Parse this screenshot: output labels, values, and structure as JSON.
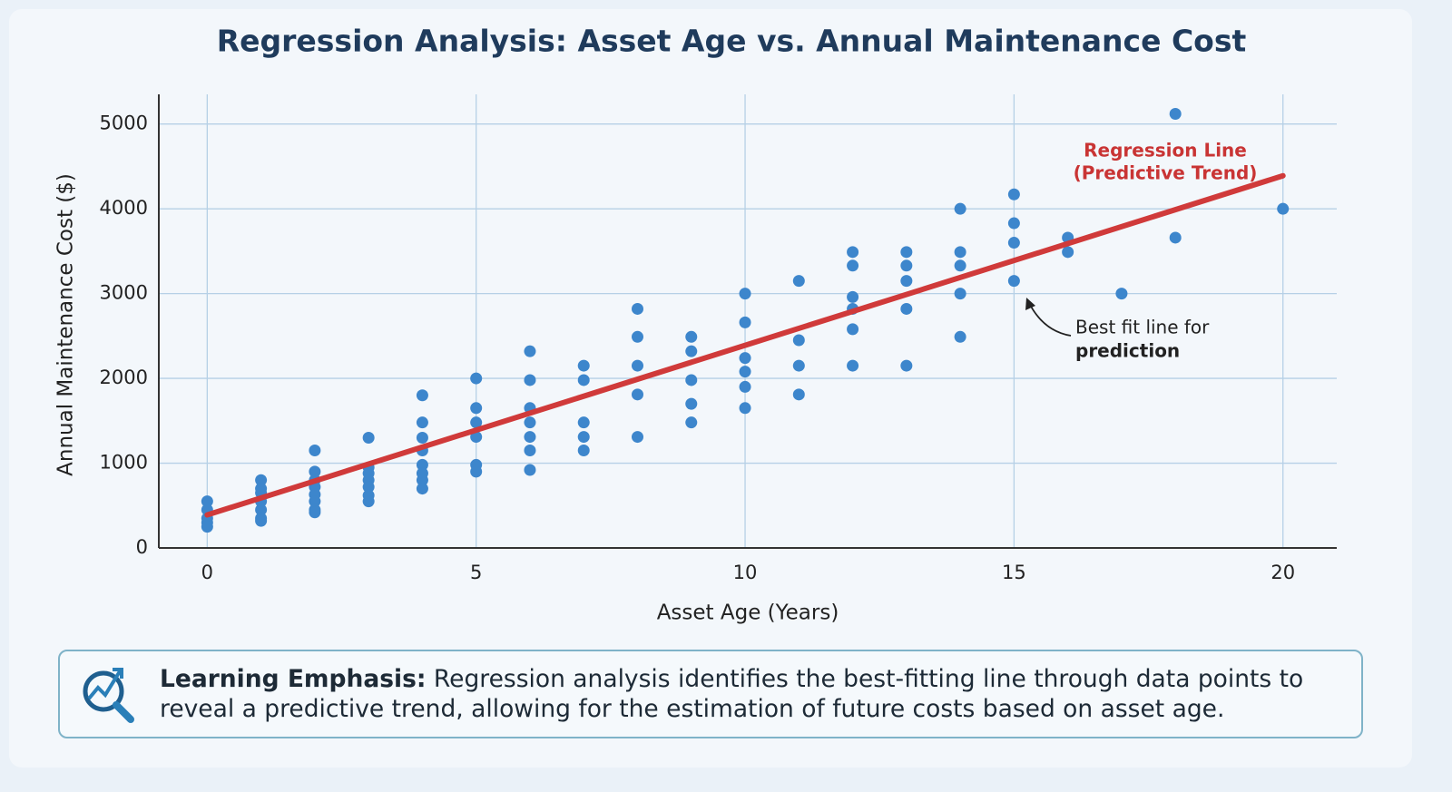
{
  "chart_data": {
    "type": "scatter",
    "title": "Regression Analysis: Asset Age vs. Annual Maintenance Cost",
    "x_label": "Asset Age (Years)",
    "y_label": "Annual Maintenance Cost ($)",
    "xlim": [
      -0.9,
      21
    ],
    "ylim": [
      0,
      5350
    ],
    "xticks": [
      0,
      5,
      10,
      15,
      20
    ],
    "yticks": [
      0,
      1000,
      2000,
      3000,
      4000,
      5000
    ],
    "grid": true,
    "series": [
      {
        "type": "scatter",
        "color": "#3d86cc",
        "x": [
          0,
          0,
          0,
          0,
          0,
          1,
          1,
          1,
          1,
          1,
          1,
          1,
          2,
          2,
          2,
          2,
          2,
          2,
          2,
          2,
          3,
          3,
          3,
          3,
          3,
          3,
          3,
          4,
          4,
          4,
          4,
          4,
          4,
          4,
          4,
          5,
          5,
          5,
          5,
          5,
          5,
          6,
          6,
          6,
          6,
          6,
          6,
          6,
          7,
          7,
          7,
          7,
          7,
          8,
          8,
          8,
          8,
          8,
          9,
          9,
          9,
          9,
          9,
          10,
          10,
          10,
          10,
          10,
          10,
          11,
          11,
          11,
          11,
          12,
          12,
          12,
          12,
          12,
          12,
          13,
          13,
          13,
          13,
          13,
          14,
          14,
          14,
          14,
          14,
          15,
          15,
          15,
          15,
          16,
          16,
          17,
          18,
          18,
          20
        ],
        "values": [
          550,
          450,
          350,
          300,
          250,
          800,
          700,
          650,
          550,
          450,
          350,
          320,
          1150,
          900,
          800,
          720,
          630,
          550,
          450,
          420,
          1300,
          950,
          880,
          800,
          720,
          620,
          550,
          1800,
          1480,
          1300,
          1150,
          980,
          880,
          800,
          700,
          2000,
          1650,
          1480,
          1310,
          980,
          900,
          2320,
          1980,
          1650,
          1480,
          1310,
          1150,
          920,
          2150,
          1980,
          1480,
          1310,
          1150,
          2820,
          2490,
          2150,
          1810,
          1310,
          2490,
          2320,
          1980,
          1700,
          1480,
          3000,
          2660,
          2240,
          2080,
          1900,
          1650,
          3150,
          2450,
          2150,
          1810,
          3490,
          3330,
          2960,
          2820,
          2580,
          2150,
          3490,
          3330,
          3150,
          2820,
          2150,
          4000,
          3490,
          3330,
          3000,
          2490,
          4170,
          3830,
          3600,
          3150,
          3660,
          3490,
          3000,
          5120,
          3660,
          4000
        ]
      },
      {
        "type": "line",
        "color": "#d03a3a",
        "x": [
          0,
          20
        ],
        "values": [
          390,
          4390
        ]
      }
    ],
    "annotations": [
      "Regression Line",
      "(Predictive Trend)",
      "Best fit line for",
      "prediction"
    ]
  },
  "learning_emphasis": {
    "label": "Learning Emphasis:",
    "text": "Regression analysis identifies the best-fitting line through data points to reveal a predictive trend, allowing for the estimation of future costs based on asset age."
  }
}
